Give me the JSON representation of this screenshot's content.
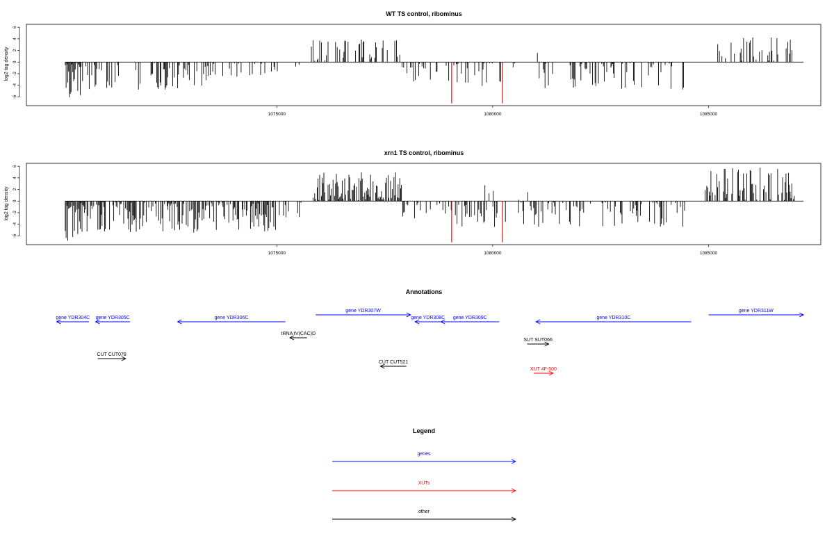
{
  "chart_data": [
    {
      "type": "bar",
      "title": "WT TS control, ribominus",
      "xlabel": "",
      "ylabel": "log2 tag density",
      "xlim": [
        1069200,
        1087600
      ],
      "ylim": [
        -7.5,
        6.5
      ],
      "yticks": [
        -6,
        -4,
        -2,
        0,
        2,
        4,
        6
      ],
      "xticks": [
        1075000,
        1080000,
        1085000
      ],
      "xtick_labels": [
        "1075000",
        "1080000",
        "1085000"
      ],
      "baseline": {
        "from": 1070100,
        "to": 1087200
      },
      "highlight_color": "#ff0000",
      "bar_color": "#000000",
      "highlight": [
        {
          "x": 1079050,
          "value": -7.1
        },
        {
          "x": 1080230,
          "value": -7.1
        }
      ],
      "regions": [
        {
          "from": 1070100,
          "to": 1070500,
          "sign": -1,
          "max": 6.3,
          "dense": 1.0
        },
        {
          "from": 1070500,
          "to": 1073400,
          "sign": -1,
          "max": 4.8,
          "dense": 0.35
        },
        {
          "from": 1073400,
          "to": 1074200,
          "sign": -1,
          "max": 2.6,
          "dense": 0.3
        },
        {
          "from": 1074200,
          "to": 1075300,
          "sign": -1,
          "max": 2.8,
          "dense": 0.25
        },
        {
          "from": 1075400,
          "to": 1075550,
          "sign": -1,
          "max": 2.8,
          "dense": 0.2
        },
        {
          "from": 1075800,
          "to": 1077900,
          "sign": 1,
          "max": 4.1,
          "dense": 0.45
        },
        {
          "from": 1077900,
          "to": 1079000,
          "sign": -1,
          "max": 3.4,
          "dense": 0.3
        },
        {
          "from": 1079100,
          "to": 1080200,
          "sign": -1,
          "max": 4.3,
          "dense": 0.3
        },
        {
          "from": 1080300,
          "to": 1080600,
          "sign": -1,
          "max": 2.0,
          "dense": 0.2
        },
        {
          "from": 1080900,
          "to": 1081050,
          "sign": 1,
          "max": 1.6,
          "dense": 0.3
        },
        {
          "from": 1081000,
          "to": 1084500,
          "sign": -1,
          "max": 4.8,
          "dense": 0.3
        },
        {
          "from": 1085000,
          "to": 1087000,
          "sign": 1,
          "max": 4.4,
          "dense": 0.35
        }
      ]
    },
    {
      "type": "bar",
      "title": "xrn1 TS control, ribominus",
      "xlabel": "",
      "ylabel": "log2 tag density",
      "xlim": [
        1069200,
        1087600
      ],
      "ylim": [
        -7.5,
        6.5
      ],
      "yticks": [
        -6,
        -4,
        -2,
        0,
        2,
        4,
        6
      ],
      "xticks": [
        1075000,
        1080000,
        1085000
      ],
      "xtick_labels": [
        "1075000",
        "1080000",
        "1085000"
      ],
      "baseline": {
        "from": 1070100,
        "to": 1087200
      },
      "highlight_color": "#ff0000",
      "bar_color": "#000000",
      "highlight": [
        {
          "x": 1079050,
          "value": -7.1
        },
        {
          "x": 1080230,
          "value": -7.1
        }
      ],
      "regions": [
        {
          "from": 1070100,
          "to": 1070450,
          "sign": -1,
          "max": 7.0,
          "dense": 1.0
        },
        {
          "from": 1070450,
          "to": 1075000,
          "sign": -1,
          "max": 5.5,
          "dense": 0.75
        },
        {
          "from": 1075000,
          "to": 1075600,
          "sign": -1,
          "max": 3.0,
          "dense": 0.2
        },
        {
          "from": 1075800,
          "to": 1077900,
          "sign": 1,
          "max": 5.3,
          "dense": 0.85
        },
        {
          "from": 1077900,
          "to": 1079000,
          "sign": -1,
          "max": 3.2,
          "dense": 0.35
        },
        {
          "from": 1079000,
          "to": 1080300,
          "sign": -1,
          "max": 4.5,
          "dense": 0.45
        },
        {
          "from": 1079800,
          "to": 1080100,
          "sign": 1,
          "max": 2.8,
          "dense": 0.25
        },
        {
          "from": 1080600,
          "to": 1081000,
          "sign": 1,
          "max": 3.4,
          "dense": 0.3
        },
        {
          "from": 1080600,
          "to": 1084500,
          "sign": -1,
          "max": 4.6,
          "dense": 0.45
        },
        {
          "from": 1084900,
          "to": 1087000,
          "sign": 1,
          "max": 6.0,
          "dense": 0.6
        }
      ]
    }
  ],
  "annotations": {
    "title": "Annotations",
    "xlim": [
      1069200,
      1087600
    ],
    "features": [
      {
        "label": "gene YDR304C",
        "start": 1070650,
        "end": 1069900,
        "row": 1,
        "color": "#0000ff"
      },
      {
        "label": "gene YDR305C",
        "start": 1071600,
        "end": 1070800,
        "row": 1,
        "color": "#0000ff"
      },
      {
        "label": "gene YDR306C",
        "start": 1075200,
        "end": 1072700,
        "row": 1,
        "color": "#0000ff"
      },
      {
        "label": "gene YDR307W",
        "start": 1075900,
        "end": 1078100,
        "row": 0,
        "color": "#0000ff"
      },
      {
        "label": "gene YDR308C",
        "start": 1078800,
        "end": 1078200,
        "row": 1,
        "color": "#0000ff"
      },
      {
        "label": "gene YDR309C",
        "start": 1080150,
        "end": 1078800,
        "row": 1,
        "color": "#0000ff"
      },
      {
        "label": "gene YDR310C",
        "start": 1084600,
        "end": 1081000,
        "row": 1,
        "color": "#0000ff"
      },
      {
        "label": "gene YDR311W",
        "start": 1085000,
        "end": 1087200,
        "row": 0,
        "color": "#0000ff"
      },
      {
        "label": "tRNA tV(CAC)D",
        "start": 1075700,
        "end": 1075300,
        "row": 2,
        "color": "#000000"
      },
      {
        "label": "SUT SUT066",
        "start": 1080800,
        "end": 1081300,
        "row": 3,
        "color": "#000000"
      },
      {
        "label": "CUT CUT078",
        "start": 1070850,
        "end": 1071500,
        "row": 4,
        "color": "#000000"
      },
      {
        "label": "CUT CUT521",
        "start": 1078000,
        "end": 1077400,
        "row": 5,
        "color": "#000000"
      },
      {
        "label": "XUT 4F-500",
        "start": 1080950,
        "end": 1081400,
        "row": 6,
        "color": "#ff0000"
      }
    ]
  },
  "legend": {
    "title": "Legend",
    "items": [
      {
        "label": "genes",
        "color": "#0000ff"
      },
      {
        "label": "XUTs",
        "color": "#ff0000"
      },
      {
        "label": "other",
        "color": "#000000"
      }
    ]
  }
}
